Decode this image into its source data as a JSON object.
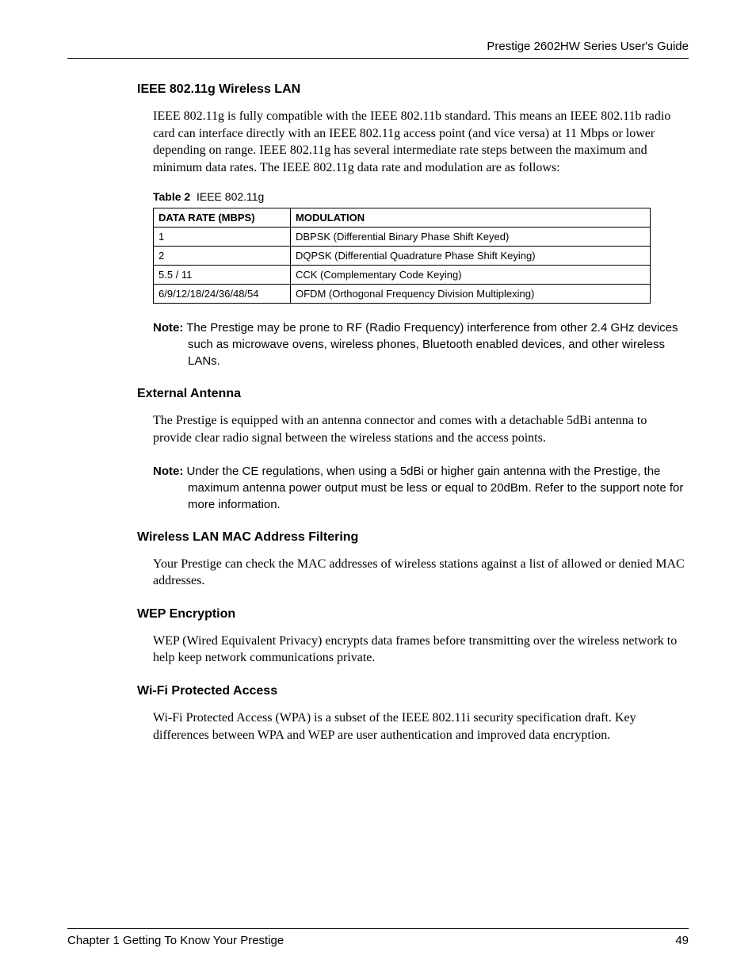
{
  "header": {
    "doc_title": "Prestige 2602HW Series User's Guide"
  },
  "sections": {
    "ieee": {
      "heading": "IEEE 802.11g Wireless LAN",
      "body": "IEEE 802.11g is fully compatible with the IEEE 802.11b standard.  This means an IEEE 802.11b radio card can interface directly with an IEEE 802.11g access point (and vice versa) at 11 Mbps or lower depending on range. IEEE 802.11g has several intermediate rate steps between the maximum and minimum data rates. The IEEE 802.11g data rate and modulation are as follows:"
    },
    "antenna": {
      "heading": "External Antenna",
      "body": "The Prestige is equipped with an antenna connector and comes with a detachable 5dBi antenna to provide clear radio signal between the wireless stations and the access points."
    },
    "macfilter": {
      "heading": "Wireless LAN MAC Address Filtering",
      "body": "Your Prestige can check the MAC addresses of wireless stations against a list of allowed or denied MAC addresses."
    },
    "wep": {
      "heading": "WEP Encryption",
      "body": "WEP (Wired Equivalent Privacy) encrypts data frames before transmitting over the wireless network to help keep network communications private."
    },
    "wpa": {
      "heading": "Wi-Fi Protected Access",
      "body": "Wi-Fi Protected Access (WPA) is a subset of the IEEE 802.11i security specification draft. Key differences between WPA and WEP are user authentication and improved data encryption."
    }
  },
  "table": {
    "caption_label": "Table 2",
    "caption_text": "IEEE 802.11g",
    "columns": [
      "DATA RATE (MBPS)",
      "MODULATION"
    ],
    "rows": [
      [
        "1",
        "DBPSK (Differential Binary Phase Shift Keyed)"
      ],
      [
        "2",
        "DQPSK (Differential Quadrature Phase Shift Keying)"
      ],
      [
        "5.5 / 11",
        "CCK (Complementary Code Keying)"
      ],
      [
        "6/9/12/18/24/36/48/54",
        "OFDM (Orthogonal Frequency Division Multiplexing)"
      ]
    ],
    "col_widths": [
      "160px",
      "auto"
    ],
    "border_color": "#000000",
    "font_size": 13
  },
  "notes": {
    "label": "Note:",
    "note1": "The Prestige may be prone to RF (Radio Frequency) interference from other 2.4 GHz devices such as microwave ovens, wireless phones, Bluetooth enabled devices, and other wireless LANs.",
    "note2": "Under the CE regulations, when using a 5dBi or higher gain antenna with the Prestige, the maximum antenna power output must be less or equal to 20dBm. Refer to the support note for more information."
  },
  "footer": {
    "chapter": "Chapter 1 Getting To Know Your Prestige",
    "page_number": "49"
  },
  "styles": {
    "heading_font": "Arial",
    "heading_size_pt": 12,
    "body_font": "Times New Roman",
    "body_size_pt": 12,
    "note_font": "Arial",
    "background_color": "#ffffff",
    "text_color": "#000000",
    "rule_color": "#000000"
  }
}
